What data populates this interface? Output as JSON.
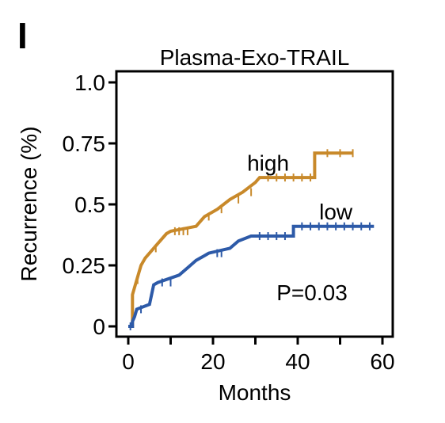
{
  "panel_label": "I",
  "chart_data": {
    "type": "line",
    "title": "Plasma-Exo-TRAIL",
    "xlabel": "Months",
    "ylabel": "Recurrence (%)",
    "xlim": [
      0,
      60
    ],
    "ylim": [
      0,
      1.0
    ],
    "x_ticks": [
      "0",
      "20",
      "40",
      "60"
    ],
    "y_ticks": [
      "0",
      "0.25",
      "0.5",
      "0.75",
      "1.0"
    ],
    "y_tick_values": [
      0,
      0.25,
      0.5,
      0.75,
      1.0
    ],
    "annotation": "P=0.03",
    "grid": false,
    "series": [
      {
        "name": "high",
        "color": "#c8892a",
        "step": [
          [
            0,
            0
          ],
          [
            1,
            0
          ],
          [
            1,
            0.13
          ],
          [
            1.5,
            0.16
          ],
          [
            2,
            0.19
          ],
          [
            2.5,
            0.22
          ],
          [
            3,
            0.25
          ],
          [
            4,
            0.28
          ],
          [
            5,
            0.3
          ],
          [
            6,
            0.32
          ],
          [
            7,
            0.34
          ],
          [
            9,
            0.38
          ],
          [
            10,
            0.39
          ],
          [
            16,
            0.41
          ],
          [
            18,
            0.45
          ],
          [
            21,
            0.48
          ],
          [
            24,
            0.52
          ],
          [
            27,
            0.55
          ],
          [
            30,
            0.59
          ],
          [
            31,
            0.61
          ],
          [
            44,
            0.61
          ],
          [
            44,
            0.71
          ],
          [
            53,
            0.71
          ]
        ],
        "censor": [
          [
            2.2,
            0.19
          ],
          [
            6.5,
            0.32
          ],
          [
            11,
            0.39
          ],
          [
            12,
            0.39
          ],
          [
            13,
            0.39
          ],
          [
            14,
            0.39
          ],
          [
            19,
            0.45
          ],
          [
            22,
            0.48
          ],
          [
            26,
            0.52
          ],
          [
            29,
            0.55
          ],
          [
            33,
            0.61
          ],
          [
            35,
            0.61
          ],
          [
            37,
            0.61
          ],
          [
            39,
            0.61
          ],
          [
            41,
            0.61
          ],
          [
            43,
            0.61
          ],
          [
            47,
            0.71
          ],
          [
            50,
            0.71
          ],
          [
            53,
            0.71
          ]
        ]
      },
      {
        "name": "low",
        "color": "#2d5aa8",
        "step": [
          [
            0,
            0
          ],
          [
            1,
            0
          ],
          [
            1,
            0.02
          ],
          [
            1.5,
            0.04
          ],
          [
            2,
            0.07
          ],
          [
            5,
            0.09
          ],
          [
            6,
            0.17
          ],
          [
            7,
            0.18
          ],
          [
            12,
            0.21
          ],
          [
            14,
            0.24
          ],
          [
            16,
            0.27
          ],
          [
            18,
            0.29
          ],
          [
            19,
            0.3
          ],
          [
            24,
            0.32
          ],
          [
            26,
            0.35
          ],
          [
            29,
            0.37
          ],
          [
            39,
            0.37
          ],
          [
            39,
            0.41
          ],
          [
            58,
            0.41
          ]
        ],
        "censor": [
          [
            0.5,
            0
          ],
          [
            3,
            0.07
          ],
          [
            8,
            0.18
          ],
          [
            10,
            0.18
          ],
          [
            21,
            0.3
          ],
          [
            22,
            0.3
          ],
          [
            31,
            0.37
          ],
          [
            33,
            0.37
          ],
          [
            35,
            0.37
          ],
          [
            37,
            0.37
          ],
          [
            41,
            0.41
          ],
          [
            43,
            0.41
          ],
          [
            45,
            0.41
          ],
          [
            47,
            0.41
          ],
          [
            49,
            0.41
          ],
          [
            51,
            0.41
          ],
          [
            53,
            0.41
          ],
          [
            55,
            0.41
          ],
          [
            57,
            0.41
          ]
        ]
      }
    ]
  }
}
